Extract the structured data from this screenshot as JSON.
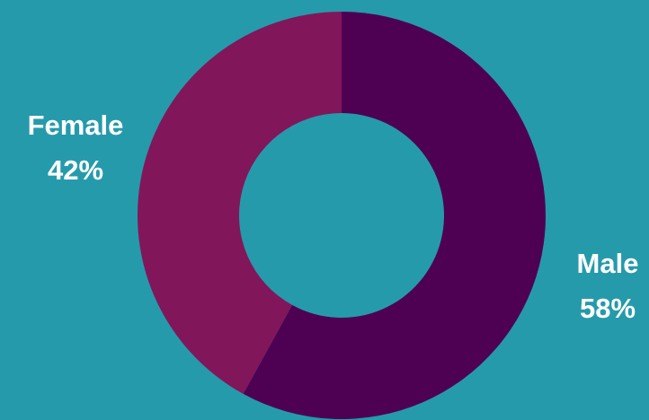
{
  "chart_data": {
    "type": "pie",
    "donut": true,
    "slices": [
      {
        "label": "Male",
        "percent_label": "58%",
        "value": 58,
        "color": "#4e0052"
      },
      {
        "label": "Female",
        "percent_label": "42%",
        "value": 42,
        "color": "#82165a"
      }
    ],
    "start": "top",
    "direction": "clockwise",
    "background_color": "#259aab",
    "text_color": "#ffffff"
  }
}
